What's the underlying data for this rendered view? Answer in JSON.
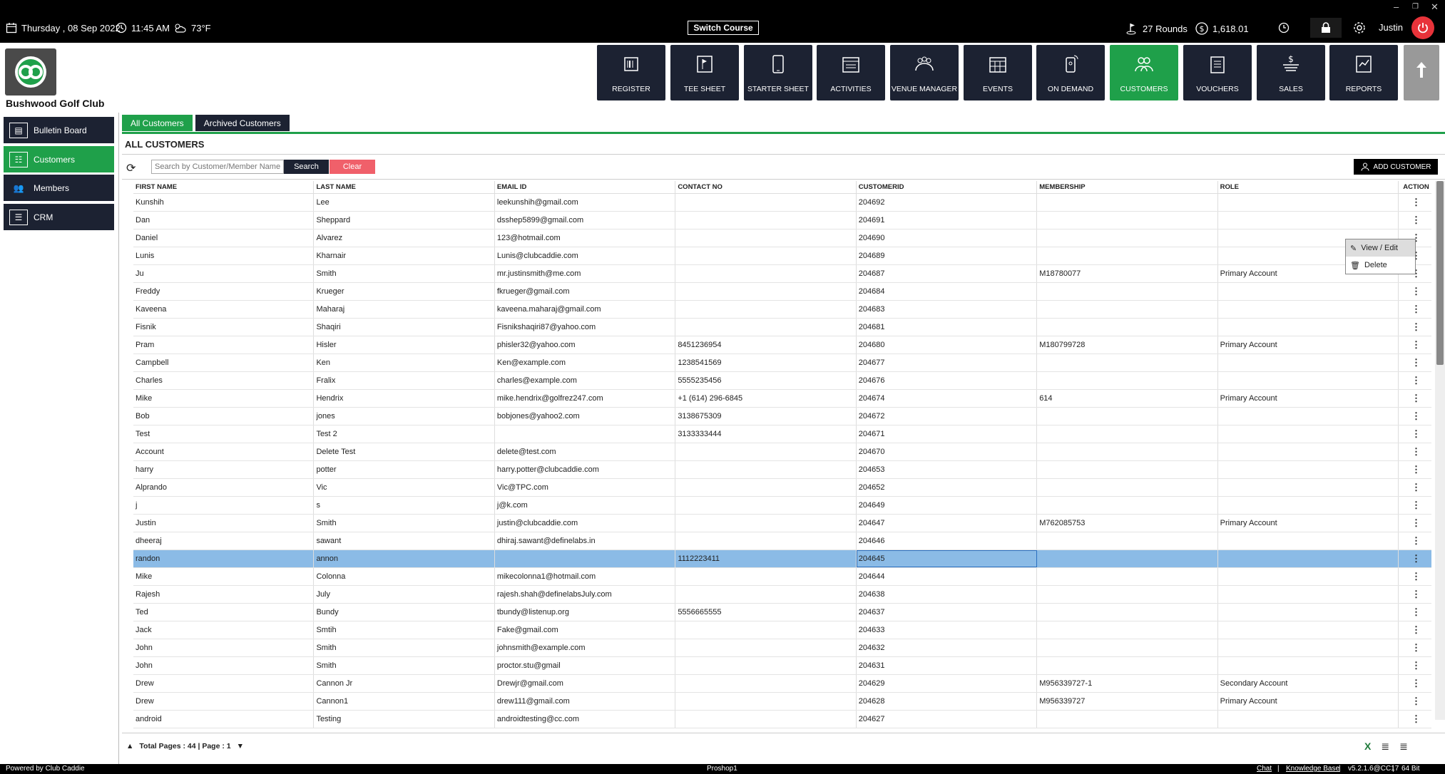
{
  "topbar": {
    "date": "Thursday ,  08 Sep 2022",
    "time": "11:45 AM",
    "weather": "73°F",
    "switch_course": "Switch Course",
    "rounds": "27 Rounds",
    "balance": "1,618.01",
    "user": "Justin"
  },
  "club": {
    "name": "Bushwood Golf Club"
  },
  "nav": [
    {
      "label": "REGISTER",
      "icon": "register-icon"
    },
    {
      "label": "TEE SHEET",
      "icon": "tee-sheet-icon"
    },
    {
      "label": "STARTER SHEET",
      "icon": "tablet-icon"
    },
    {
      "label": "ACTIVITIES",
      "icon": "calendar-icon"
    },
    {
      "label": "VENUE MANAGER",
      "icon": "group-icon"
    },
    {
      "label": "EVENTS",
      "icon": "calendar-grid-icon"
    },
    {
      "label": "ON DEMAND",
      "icon": "phone-icon"
    },
    {
      "label": "CUSTOMERS",
      "icon": "customers-icon"
    },
    {
      "label": "VOUCHERS",
      "icon": "vouchers-icon"
    },
    {
      "label": "SALES",
      "icon": "sales-icon"
    },
    {
      "label": "REPORTS",
      "icon": "reports-icon"
    }
  ],
  "sidebar": [
    {
      "label": "Bulletin Board"
    },
    {
      "label": "Customers"
    },
    {
      "label": "Members"
    },
    {
      "label": "CRM"
    }
  ],
  "tabs": [
    {
      "label": "All Customers"
    },
    {
      "label": "Archived Customers"
    }
  ],
  "page_title": "ALL CUSTOMERS",
  "search": {
    "placeholder": "Search by Customer/Member Name or Id",
    "button": "Search",
    "clear": "Clear"
  },
  "add_customer": "ADD CUSTOMER",
  "columns": [
    "FIRST NAME",
    "LAST NAME",
    "EMAIL ID",
    "CONTACT NO",
    "CUSTOMERID",
    "MEMBERSHIP",
    "ROLE",
    "ACTION"
  ],
  "rows": [
    [
      "Kunshih",
      "Lee",
      "leekunshih@gmail.com",
      "",
      "204692",
      "",
      ""
    ],
    [
      "Dan",
      "Sheppard",
      "dsshep5899@gmail.com",
      "",
      "204691",
      "",
      ""
    ],
    [
      "Daniel",
      "Alvarez",
      "123@hotmail.com",
      "",
      "204690",
      "",
      ""
    ],
    [
      "Lunis",
      "Kharnair",
      "Lunis@clubcaddie.com",
      "",
      "204689",
      "",
      ""
    ],
    [
      "Ju",
      "Smith",
      "mr.justinsmith@me.com",
      "",
      "204687",
      "M18780077",
      "Primary Account"
    ],
    [
      "Freddy",
      "Krueger",
      "fkrueger@gmail.com",
      "",
      "204684",
      "",
      ""
    ],
    [
      "Kaveena",
      "Maharaj",
      "kaveena.maharaj@gmail.com",
      "",
      "204683",
      "",
      ""
    ],
    [
      "Fisnik",
      "Shaqiri",
      "Fisnikshaqiri87@yahoo.com",
      "",
      "204681",
      "",
      ""
    ],
    [
      "Pram",
      "Hisler",
      "phisler32@yahoo.com",
      "8451236954",
      "204680",
      "M180799728",
      "Primary Account"
    ],
    [
      "Campbell",
      "Ken",
      "Ken@example.com",
      "1238541569",
      "204677",
      "",
      ""
    ],
    [
      "Charles",
      "Fralix",
      "charles@example.com",
      "5555235456",
      "204676",
      "",
      ""
    ],
    [
      "Mike",
      "Hendrix",
      "mike.hendrix@golfrez247.com",
      "+1 (614) 296-6845",
      "204674",
      "614",
      "Primary Account"
    ],
    [
      "Bob",
      "jones",
      "bobjones@yahoo2.com",
      "3138675309",
      "204672",
      "",
      ""
    ],
    [
      "Test",
      "Test 2",
      "",
      "3133333444",
      "204671",
      "",
      ""
    ],
    [
      "Account",
      "Delete Test",
      "delete@test.com",
      "",
      "204670",
      "",
      ""
    ],
    [
      "harry",
      "potter",
      "harry.potter@clubcaddie.com",
      "",
      "204653",
      "",
      ""
    ],
    [
      "Alprando",
      "Vic",
      "Vic@TPC.com",
      "",
      "204652",
      "",
      ""
    ],
    [
      "j",
      "s",
      "j@k.com",
      "",
      "204649",
      "",
      ""
    ],
    [
      "Justin",
      "Smith",
      "justin@clubcaddie.com",
      "",
      "204647",
      "M762085753",
      "Primary Account"
    ],
    [
      "dheeraj",
      "sawant",
      "dhiraj.sawant@definelabs.in",
      "",
      "204646",
      "",
      ""
    ],
    [
      "randon",
      "annon",
      "",
      "1112223411",
      "204645",
      "",
      ""
    ],
    [
      "Mike",
      "Colonna",
      "mikecolonna1@hotmail.com",
      "",
      "204644",
      "",
      ""
    ],
    [
      "Rajesh",
      "July",
      "rajesh.shah@definelabsJuly.com",
      "",
      "204638",
      "",
      ""
    ],
    [
      "Ted",
      "Bundy",
      "tbundy@listenup.org",
      "5556665555",
      "204637",
      "",
      ""
    ],
    [
      "Jack",
      "Smtih",
      "Fake@gmail.com",
      "",
      "204633",
      "",
      ""
    ],
    [
      "John",
      "Smith",
      "johnsmith@example.com",
      "",
      "204632",
      "",
      ""
    ],
    [
      "John",
      "Smith",
      "proctor.stu@gmail",
      "",
      "204631",
      "",
      ""
    ],
    [
      "Drew",
      "Cannon Jr",
      "Drewjr@gmail.com",
      "",
      "204629",
      "M956339727-1",
      "Secondary Account"
    ],
    [
      "Drew",
      "Cannon1",
      "drew111@gmail.com",
      "",
      "204628",
      "M956339727",
      "Primary Account"
    ],
    [
      "android",
      "Testing",
      "androidtesting@cc.com",
      "",
      "204627",
      "",
      ""
    ]
  ],
  "selected_row": 20,
  "context_menu": {
    "view_edit": "View / Edit",
    "delete": "Delete"
  },
  "pager": {
    "text": "Total Pages : 44 | Page : 1"
  },
  "footer": {
    "powered": "Powered by Club Caddie",
    "station": "Proshop1",
    "chat": "Chat",
    "kb": "Knowledge Base",
    "version": "v5.2.1.6@CC17",
    "arch": "64 Bit"
  },
  "colors": {
    "accent": "#1fa04a",
    "dark": "#1c2232",
    "selected": "#8bbbe6",
    "danger": "#f0606a"
  }
}
